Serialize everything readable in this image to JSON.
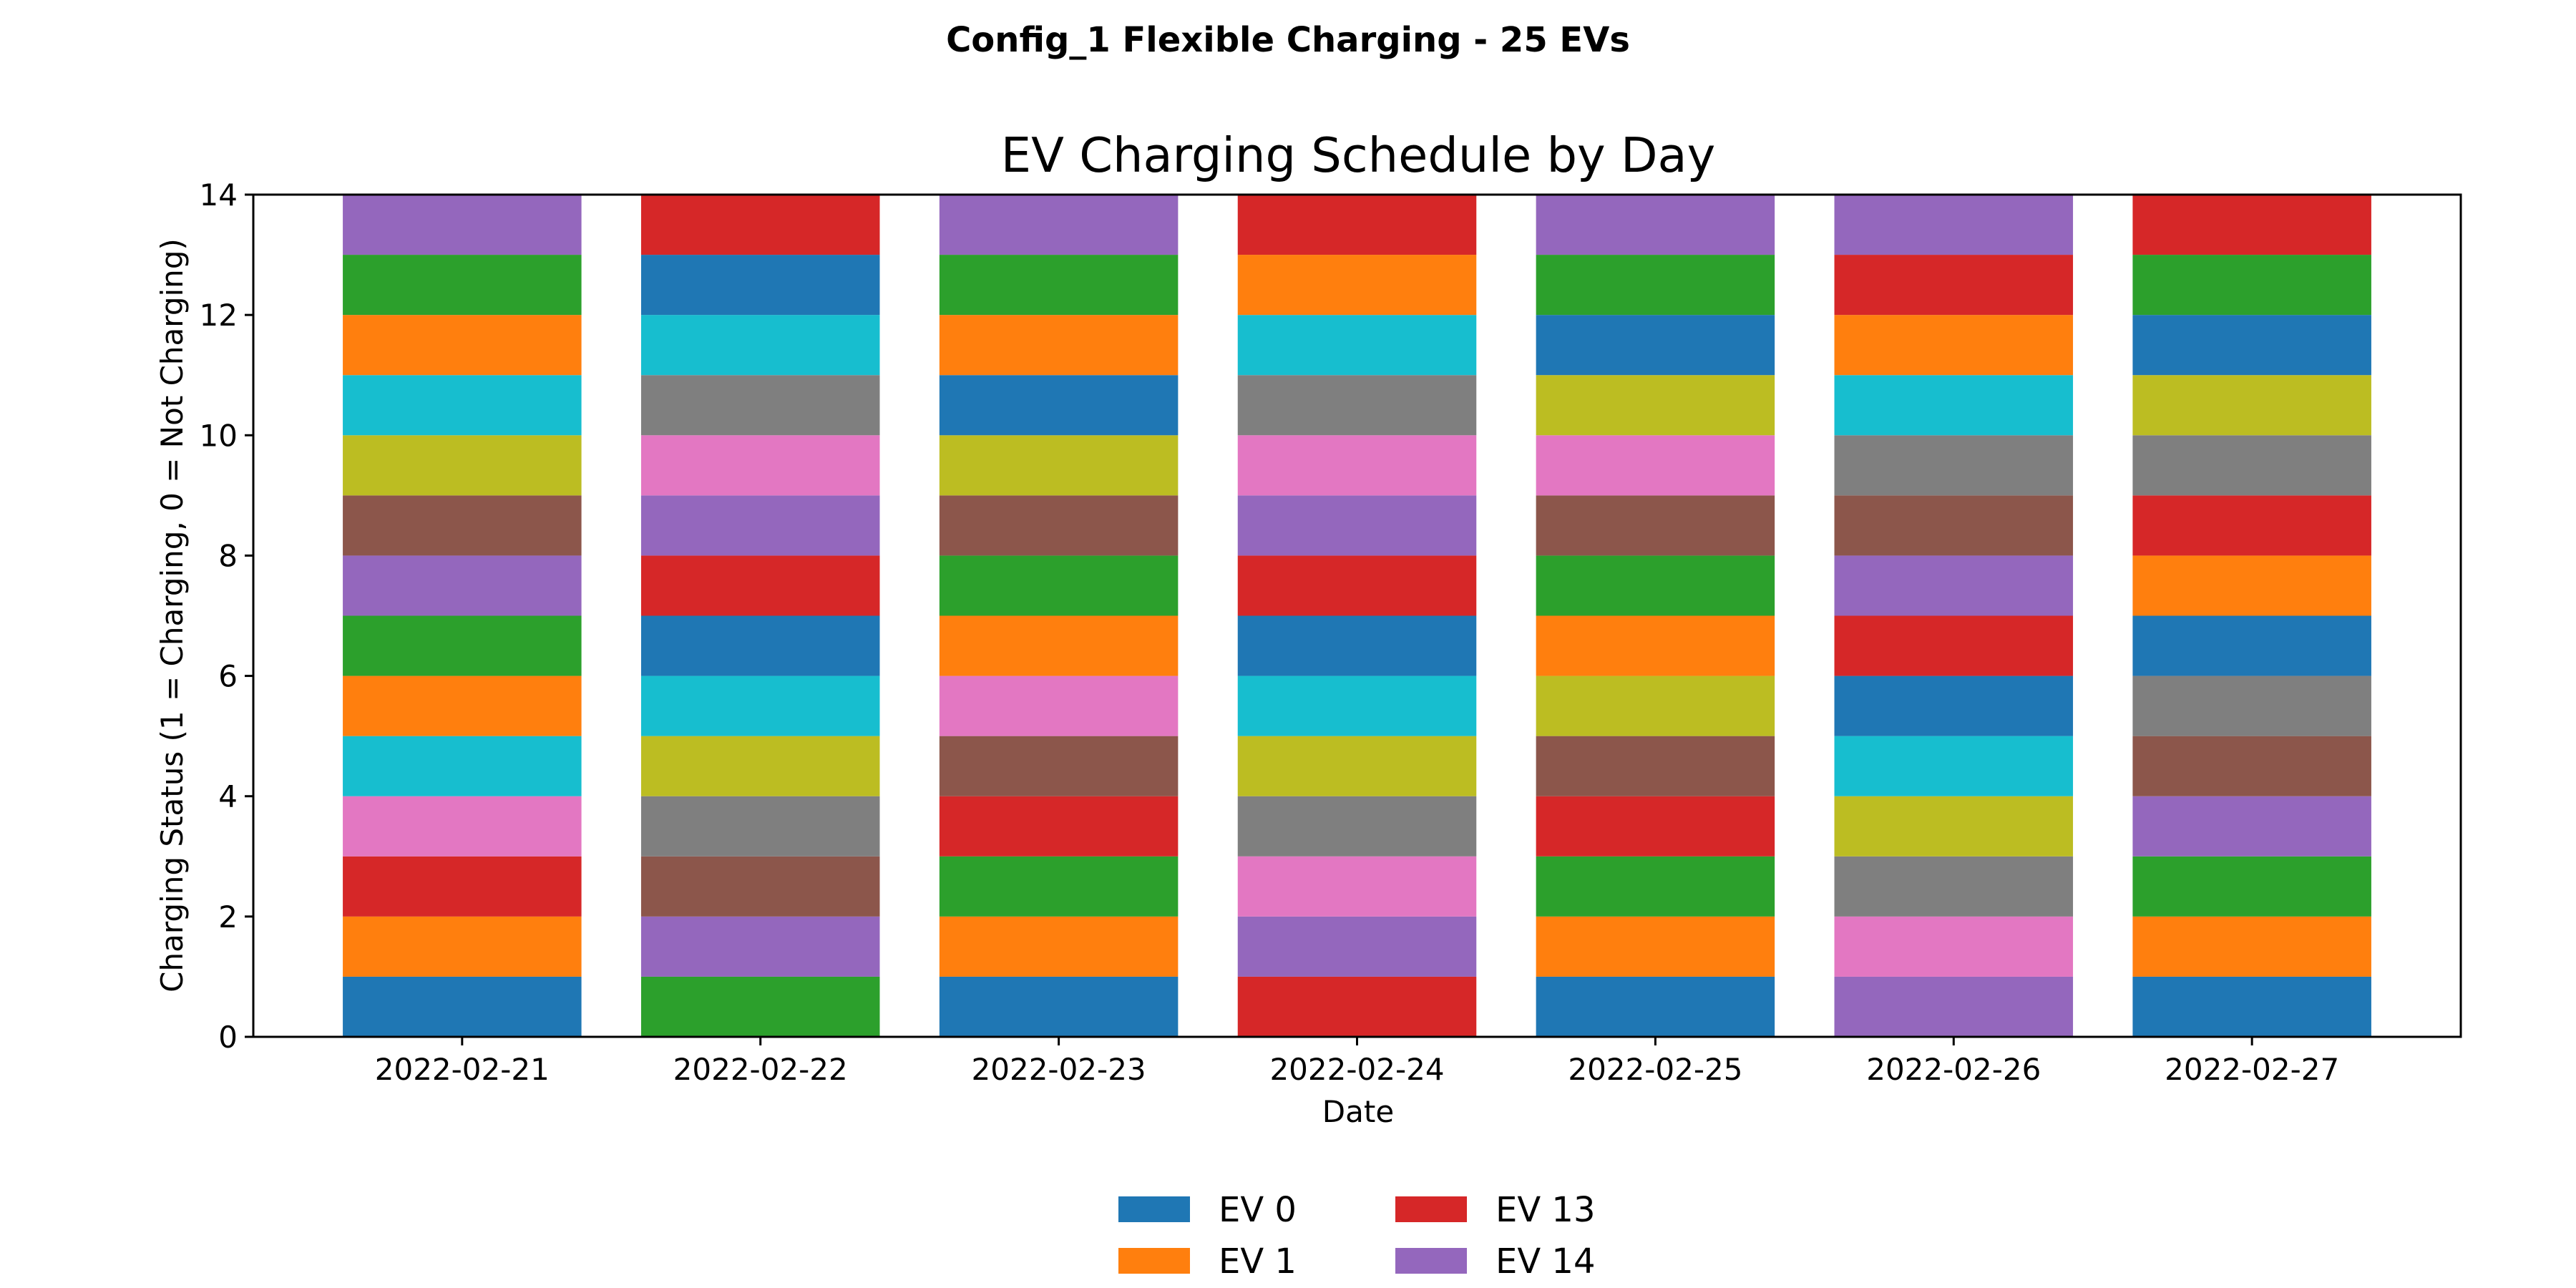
{
  "figure": {
    "suptitle": "Config_1 Flexible Charging - 25 EVs"
  },
  "chart_data": {
    "type": "bar",
    "stacked": true,
    "title": "EV Charging Schedule by Day",
    "xlabel": "Date",
    "ylabel": "Charging Status (1 = Charging, 0 = Not Charging)",
    "ylim": [
      0,
      14
    ],
    "yticks": [
      0,
      2,
      4,
      6,
      8,
      10,
      12,
      14
    ],
    "grid": false,
    "categories": [
      "2022-02-21",
      "2022-02-22",
      "2022-02-23",
      "2022-02-24",
      "2022-02-25",
      "2022-02-26",
      "2022-02-27"
    ],
    "colors": [
      "#1f77b4",
      "#ff7f0e",
      "#2ca02c",
      "#d62728",
      "#9467bd",
      "#8c564b",
      "#e377c2",
      "#7f7f7f",
      "#bcbd22",
      "#17becf"
    ],
    "stack_color_index": [
      [
        0,
        1,
        3,
        6,
        9,
        1,
        2,
        4,
        5,
        8,
        9,
        1,
        2,
        4
      ],
      [
        2,
        4,
        5,
        7,
        8,
        9,
        0,
        3,
        4,
        6,
        7,
        9,
        0,
        3
      ],
      [
        0,
        1,
        2,
        3,
        5,
        6,
        1,
        2,
        5,
        8,
        0,
        1,
        2,
        4
      ],
      [
        3,
        4,
        6,
        7,
        8,
        9,
        0,
        3,
        4,
        6,
        7,
        9,
        1,
        3
      ],
      [
        0,
        1,
        2,
        3,
        5,
        8,
        1,
        2,
        5,
        6,
        8,
        0,
        2,
        4
      ],
      [
        4,
        6,
        7,
        8,
        9,
        0,
        3,
        4,
        5,
        7,
        9,
        1,
        3,
        4
      ],
      [
        0,
        1,
        2,
        4,
        5,
        7,
        0,
        1,
        3,
        7,
        8,
        0,
        2,
        3
      ]
    ],
    "legend": {
      "placement": "below",
      "columns": 2,
      "entries": [
        {
          "label": "EV 0",
          "color": "#1f77b4"
        },
        {
          "label": "EV 1",
          "color": "#ff7f0e"
        },
        {
          "label": "EV 13",
          "color": "#d62728"
        },
        {
          "label": "EV 14",
          "color": "#9467bd"
        }
      ]
    }
  }
}
